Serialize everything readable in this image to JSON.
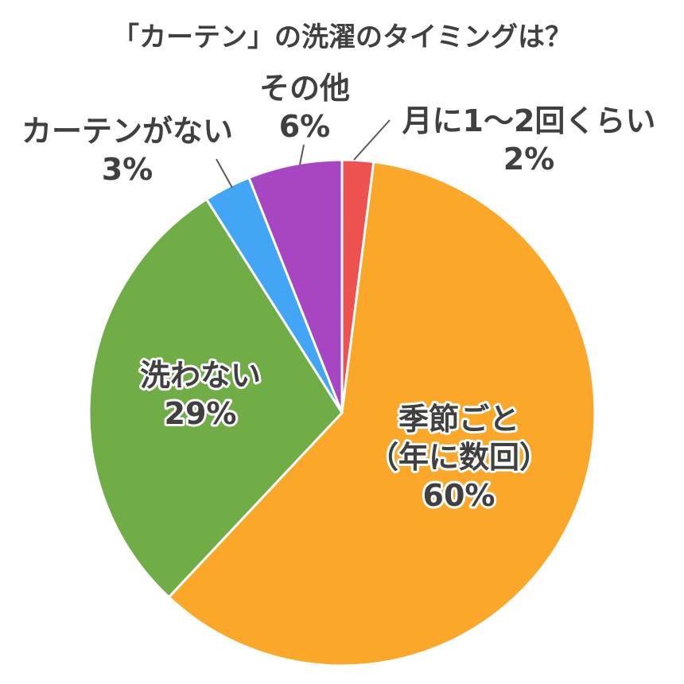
{
  "chart_data": {
    "type": "pie",
    "title": "「カーテン」の洗濯のタイミングは？",
    "slices": [
      {
        "name": "月に1～2回くらい",
        "label_lines": [
          "月に1～2回くらい"
        ],
        "value": 2,
        "value_label": "2%",
        "color": "#ED5150"
      },
      {
        "name": "季節ごと（年に数回）",
        "label_lines": [
          "季節ごと",
          "（年に数回）"
        ],
        "value": 60,
        "value_label": "60%",
        "color": "#FBA72A"
      },
      {
        "name": "洗わない",
        "label_lines": [
          "洗わない"
        ],
        "value": 29,
        "value_label": "29%",
        "color": "#70AD47"
      },
      {
        "name": "カーテンがない",
        "label_lines": [
          "カーテンがない"
        ],
        "value": 3,
        "value_label": "3%",
        "color": "#42A5F5"
      },
      {
        "name": "その他",
        "label_lines": [
          "その他"
        ],
        "value": 6,
        "value_label": "6%",
        "color": "#A746C2"
      }
    ]
  }
}
